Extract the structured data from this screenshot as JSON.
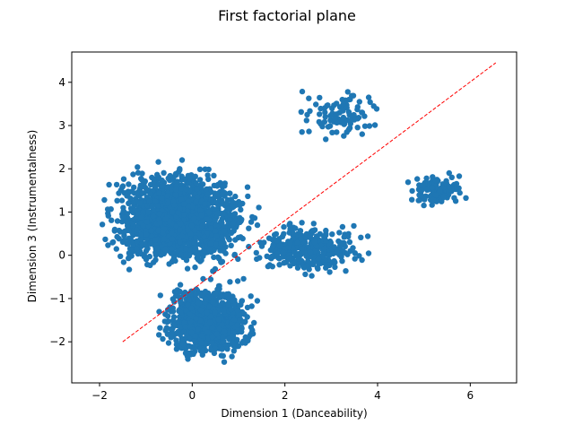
{
  "chart_data": {
    "type": "scatter",
    "title": "First factorial plane",
    "xlabel": "Dimension 1 (Danceability)",
    "ylabel": "Dimension 3 (Instrumentalness)",
    "xlim": [
      -2.6,
      7.0
    ],
    "ylim": [
      -2.95,
      4.7
    ],
    "xticks": [
      -2,
      0,
      2,
      4,
      6
    ],
    "yticks": [
      -2,
      -1,
      0,
      1,
      2,
      3,
      4
    ],
    "xtick_labels": [
      "−2",
      "0",
      "2",
      "4",
      "6"
    ],
    "ytick_labels": [
      "−2",
      "−1",
      "0",
      "1",
      "2",
      "3",
      "4"
    ],
    "grid": false,
    "marker_color": "#1f77b4",
    "clusters": [
      {
        "x_range": [
          -2.2,
          1.6
        ],
        "y_range": [
          -0.6,
          2.3
        ],
        "count": 1700
      },
      {
        "x_range": [
          -0.9,
          1.6
        ],
        "y_range": [
          -2.6,
          -0.4
        ],
        "count": 900
      },
      {
        "x_range": [
          1.0,
          4.0
        ],
        "y_range": [
          -0.6,
          0.9
        ],
        "count": 350
      },
      {
        "x_range": [
          2.0,
          4.5
        ],
        "y_range": [
          2.5,
          4.0
        ],
        "count": 90
      },
      {
        "x_range": [
          4.5,
          6.1
        ],
        "y_range": [
          1.0,
          2.0
        ],
        "count": 120
      }
    ],
    "reference_line": {
      "type": "dashed",
      "color": "#ff0000",
      "x": [
        -1.5,
        6.55
      ],
      "y": [
        -2.0,
        4.45
      ]
    }
  }
}
